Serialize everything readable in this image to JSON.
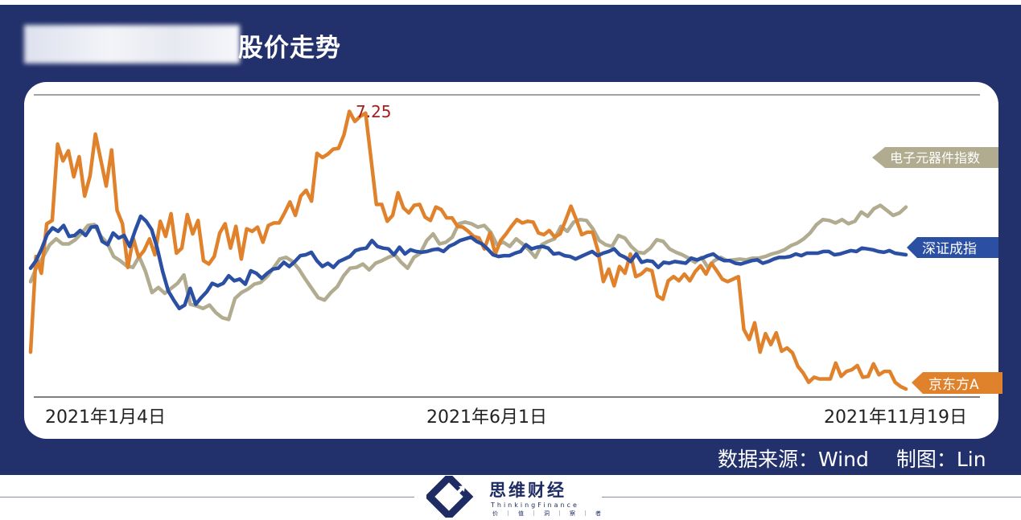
{
  "header": {
    "title": "股价走势"
  },
  "footer": {
    "source": "数据来源：Wind",
    "author": "制图：Lin",
    "brand_cn": "思维财经",
    "brand_en": "ThinkingFinance",
    "brand_sub": "价｜值｜洞｜察｜者"
  },
  "colors": {
    "background": "#22306b",
    "orange": "#e0822c",
    "blue": "#2a4fa3",
    "gray": "#b1ab8f",
    "peak_label": "#a51d1d"
  },
  "chart_data": {
    "type": "line",
    "x_tick_labels": [
      "2021年1月4日",
      "2021年6月1日",
      "2021年11月19日"
    ],
    "peak_annotation": {
      "series": "京东方A",
      "text": "7.25"
    },
    "series": [
      {
        "name": "京东方A",
        "color": "#e0822c",
        "values": [
          4.22,
          5.36,
          5.16,
          5.75,
          5.79,
          6.7,
          6.5,
          6.62,
          6.31,
          6.55,
          6.08,
          6.32,
          6.82,
          6.51,
          6.2,
          6.63,
          5.91,
          5.75,
          5.23,
          5.58,
          5.35,
          5.43,
          5.57,
          5.38,
          5.78,
          5.6,
          5.87,
          5.4,
          5.46,
          5.86,
          5.63,
          5.79,
          5.31,
          5.27,
          5.36,
          5.64,
          5.75,
          5.46,
          5.72,
          5.33,
          5.69,
          5.66,
          5.71,
          5.53,
          5.73,
          5.76,
          5.76,
          5.88,
          6.01,
          5.85,
          6.08,
          6.15,
          6.02,
          6.59,
          6.54,
          6.58,
          6.64,
          6.65,
          6.81,
          7.09,
          6.97,
          7.03,
          7.07,
          6.53,
          5.98,
          5.98,
          5.78,
          5.85,
          6.12,
          5.94,
          5.88,
          5.97,
          5.98,
          5.83,
          5.79,
          5.95,
          5.92,
          5.82,
          5.82,
          5.72,
          5.71,
          5.66,
          5.6,
          5.58,
          5.45,
          5.64,
          5.39,
          5.55,
          5.63,
          5.72,
          5.8,
          5.76,
          5.78,
          5.77,
          5.64,
          5.62,
          5.67,
          5.59,
          5.63,
          5.79,
          5.96,
          5.8,
          5.62,
          5.65,
          5.65,
          5.43,
          5.06,
          5.21,
          5.01,
          5.24,
          5.16,
          5.39,
          5.12,
          5.15,
          5.21,
          5.19,
          4.89,
          4.85,
          5.07,
          5.12,
          5.07,
          5.15,
          5.07,
          5.18,
          5.25,
          5.15,
          5.28,
          5.19,
          5.09,
          5.06,
          5.09,
          5.12,
          4.49,
          4.37,
          4.57,
          4.22,
          4.44,
          4.31,
          4.45,
          4.23,
          4.27,
          4.21,
          4.05,
          3.97,
          3.86,
          3.92,
          3.9,
          3.9,
          3.9,
          4.09,
          3.93,
          3.99,
          4.01,
          4.06,
          3.92,
          3.93,
          4.08,
          3.95,
          3.99,
          3.99,
          3.86,
          3.81,
          3.78
        ]
      },
      {
        "name": "深证成指",
        "color": "#2a4fa3",
        "values": [
          5.22,
          5.31,
          5.45,
          5.62,
          5.7,
          5.66,
          5.73,
          5.6,
          5.61,
          5.67,
          5.61,
          5.71,
          5.72,
          5.54,
          5.5,
          5.64,
          5.58,
          5.61,
          5.48,
          5.67,
          5.84,
          5.78,
          5.68,
          5.46,
          5.18,
          4.95,
          4.84,
          4.74,
          4.78,
          4.98,
          4.79,
          4.87,
          4.94,
          5.04,
          5.01,
          5.04,
          5.13,
          5.07,
          5.09,
          5.03,
          5.19,
          5.16,
          5.1,
          5.16,
          5.21,
          5.22,
          5.29,
          5.24,
          5.3,
          5.37,
          5.38,
          5.41,
          5.31,
          5.24,
          5.28,
          5.23,
          5.3,
          5.33,
          5.36,
          5.43,
          5.45,
          5.46,
          5.55,
          5.48,
          5.46,
          5.45,
          5.38,
          5.47,
          5.39,
          5.44,
          5.42,
          5.41,
          5.42,
          5.44,
          5.45,
          5.42,
          5.48,
          5.51,
          5.55,
          5.57,
          5.59,
          5.54,
          5.51,
          5.45,
          5.38,
          5.36,
          5.37,
          5.37,
          5.4,
          5.42,
          5.5,
          5.45,
          5.47,
          5.48,
          5.46,
          5.39,
          5.4,
          5.37,
          5.36,
          5.33,
          5.36,
          5.39,
          5.42,
          5.37,
          5.4,
          5.42,
          5.45,
          5.38,
          5.35,
          5.3,
          5.39,
          5.29,
          5.31,
          5.3,
          5.23,
          5.29,
          5.28,
          5.3,
          5.29,
          5.28,
          5.34,
          5.32,
          5.34,
          5.37,
          5.39,
          5.34,
          5.31,
          5.31,
          5.28,
          5.27,
          5.29,
          5.31,
          5.32,
          5.28,
          5.3,
          5.33,
          5.35,
          5.35,
          5.36,
          5.39,
          5.37,
          5.4,
          5.4,
          5.4,
          5.42,
          5.42,
          5.38,
          5.39,
          5.41,
          5.43,
          5.42,
          5.46,
          5.45,
          5.44,
          5.42,
          5.41,
          5.43,
          5.4,
          5.39,
          5.38
        ]
      },
      {
        "name": "电子元器件指数",
        "color": "#b1ab8f",
        "values": [
          5.06,
          5.24,
          5.36,
          5.5,
          5.57,
          5.51,
          5.51,
          5.56,
          5.64,
          5.73,
          5.74,
          5.6,
          5.52,
          5.36,
          5.31,
          5.25,
          5.23,
          5.36,
          5.18,
          4.93,
          4.99,
          4.92,
          4.98,
          5.04,
          5.14,
          4.79,
          4.77,
          4.74,
          4.78,
          4.69,
          4.63,
          4.61,
          4.86,
          4.93,
          4.97,
          5.03,
          5.05,
          5.12,
          5.22,
          5.33,
          5.35,
          5.3,
          5.21,
          5.09,
          4.98,
          4.87,
          4.84,
          4.93,
          5.0,
          5.13,
          5.22,
          5.23,
          5.27,
          5.2,
          5.28,
          5.31,
          5.35,
          5.38,
          5.29,
          5.22,
          5.35,
          5.4,
          5.55,
          5.63,
          5.51,
          5.53,
          5.59,
          5.75,
          5.77,
          5.75,
          5.71,
          5.73,
          5.65,
          5.5,
          5.53,
          5.48,
          5.57,
          5.51,
          5.44,
          5.35,
          5.5,
          5.54,
          5.57,
          5.72,
          5.66,
          5.77,
          5.8,
          5.79,
          5.69,
          5.55,
          5.5,
          5.48,
          5.61,
          5.58,
          5.48,
          5.41,
          5.4,
          5.46,
          5.56,
          5.54,
          5.45,
          5.41,
          5.38,
          5.34,
          5.29,
          5.35,
          5.23,
          5.31,
          5.35,
          5.31,
          5.32,
          5.33,
          5.32,
          5.34,
          5.34,
          5.36,
          5.39,
          5.41,
          5.44,
          5.49,
          5.52,
          5.57,
          5.64,
          5.74,
          5.8,
          5.79,
          5.76,
          5.8,
          5.75,
          5.78,
          5.89,
          5.84,
          5.93,
          5.97,
          5.91,
          5.85,
          5.88,
          5.95
        ]
      }
    ]
  }
}
